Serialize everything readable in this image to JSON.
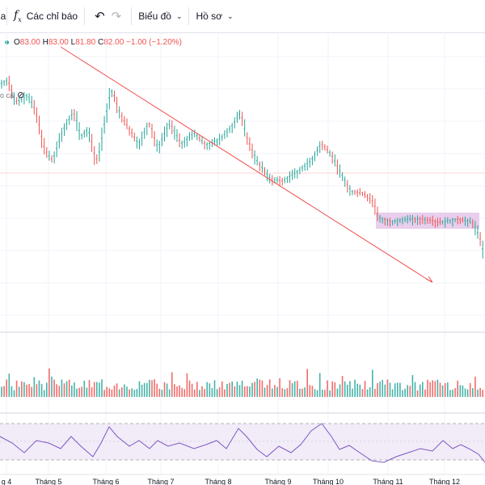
{
  "toolbar": {
    "indicators_label": "Các chỉ báo",
    "chart_menu_label": "Biểu đồ",
    "profile_menu_label": "Hồ sơ",
    "left_edge_label": "a"
  },
  "legend": {
    "o_label": "O",
    "o_value": "83.00",
    "h_label": "H",
    "h_value": "83.00",
    "l_label": "L",
    "l_value": "81.80",
    "c_label": "C",
    "c_value": "82.00",
    "change": "−1.00 (−1.20%)"
  },
  "volume_overlay_label": "o cấ",
  "x_axis": {
    "months": [
      "g 4",
      "Tháng 5",
      "Tháng 6",
      "Tháng 7",
      "Tháng 8",
      "Tháng 9",
      "Tháng 10",
      "Tháng 11",
      "Tháng 12"
    ]
  },
  "colors": {
    "up": "#26a69a",
    "down": "#ef5350",
    "trendline": "#ef5350",
    "box_fill": "#e1bee7",
    "rsi_line": "#7e57c2",
    "rsi_band": "#ede7f6"
  }
}
